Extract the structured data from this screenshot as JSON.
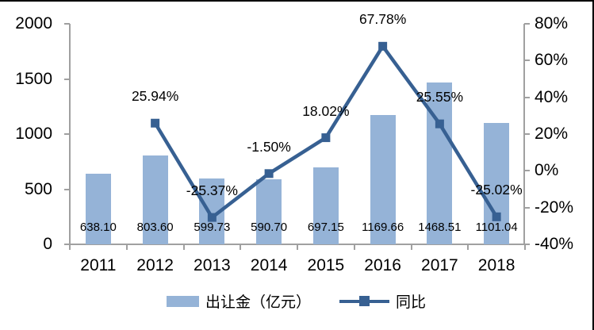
{
  "chart_data": {
    "type": "combo",
    "title": "",
    "categories": [
      "2011",
      "2012",
      "2013",
      "2014",
      "2015",
      "2016",
      "2017",
      "2018"
    ],
    "series": [
      {
        "name": "出让金（亿元）",
        "type": "bar",
        "axis": "left",
        "color": "#95b3d7",
        "values": [
          638.1,
          803.6,
          599.73,
          590.7,
          697.15,
          1169.66,
          1468.51,
          1101.04
        ],
        "labels": [
          "638.10",
          "803.60",
          "599.73",
          "590.70",
          "697.15",
          "1169.66",
          "1468.51",
          "1101.04"
        ]
      },
      {
        "name": "同比",
        "type": "line",
        "axis": "right",
        "color": "#376092",
        "values": [
          null,
          25.94,
          -25.37,
          -1.5,
          18.02,
          67.78,
          25.55,
          -25.02
        ],
        "labels": [
          null,
          "25.94%",
          "-25.37%",
          "-1.50%",
          "18.02%",
          "67.78%",
          "25.55%",
          "-25.02%"
        ]
      }
    ],
    "left_axis": {
      "min": 0,
      "max": 2000,
      "ticks": [
        2000,
        1500,
        1000,
        500,
        0
      ],
      "tick_labels": [
        "2000",
        "1500",
        "1000",
        "500",
        "0"
      ]
    },
    "right_axis": {
      "min": -40,
      "max": 80,
      "ticks": [
        80,
        60,
        40,
        20,
        0,
        -20,
        -40
      ],
      "tick_labels": [
        "80%",
        "60%",
        "40%",
        "20%",
        "0%",
        "-20%",
        "-40%"
      ]
    },
    "legend": {
      "position": "bottom",
      "items": [
        {
          "label": "出让金（亿元）",
          "swatch": "bar"
        },
        {
          "label": "同比",
          "swatch": "line-marker"
        }
      ]
    },
    "grid": false
  },
  "colors": {
    "bar": "#95b3d7",
    "line": "#376092",
    "axis": "#a0a0a0",
    "text": "#000000",
    "frame_border": "#000000",
    "background": "#ffffff"
  }
}
